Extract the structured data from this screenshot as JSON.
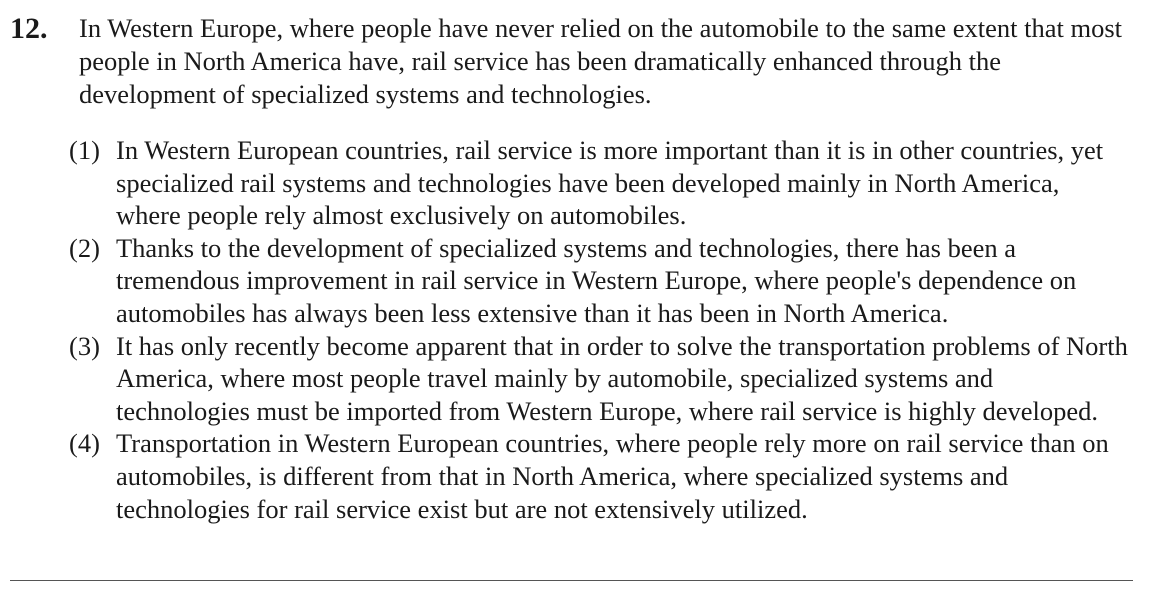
{
  "question": {
    "number": "12.",
    "stem": "In Western Europe, where people have never relied on the automobile to the same extent that most people in North America have, rail service has been dramatically enhanced through the development of specialized systems and technologies.",
    "options": [
      {
        "label": "(1)",
        "text": "In Western European countries, rail service is more important than it is in other countries, yet specialized rail systems and technologies have been developed mainly in North America, where people rely almost exclusively on automobiles."
      },
      {
        "label": "(2)",
        "text": "Thanks to the development of specialized systems and technologies, there has been a tremendous improvement in rail service in Western Europe, where people's dependence on automobiles has always been less extensive than it has been in North America."
      },
      {
        "label": "(3)",
        "text": "It has only recently become apparent that in order to solve the transportation problems of North America, where most people travel mainly by automobile, specialized systems and technologies must be imported from Western Europe, where rail service is highly developed."
      },
      {
        "label": "(4)",
        "text": "Transportation in Western European countries, where people rely more on rail service than on automobiles, is different from that in North America, where specialized systems and technologies for rail service exist but are not extensively utilized."
      }
    ]
  }
}
